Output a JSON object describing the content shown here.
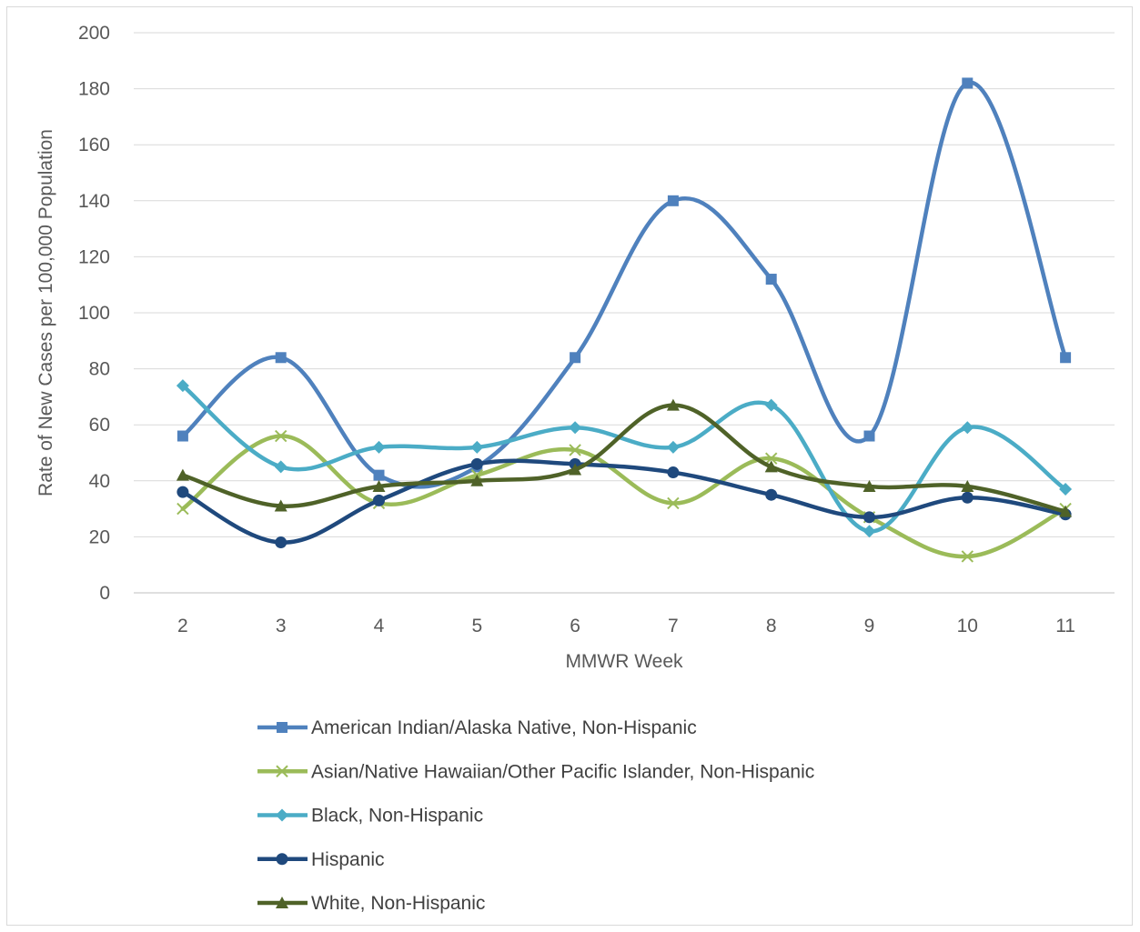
{
  "chart_data": {
    "type": "line",
    "title": "",
    "xlabel": "MMWR Week",
    "ylabel": "Rate of New Cases per 100,000 Population",
    "ylim": [
      0,
      200
    ],
    "yticks": [
      "0",
      "20",
      "40",
      "60",
      "80",
      "100",
      "120",
      "140",
      "160",
      "180",
      "200"
    ],
    "categories": [
      "2",
      "3",
      "4",
      "5",
      "6",
      "7",
      "8",
      "9",
      "10",
      "11"
    ],
    "grid": true,
    "legend_position": "bottom",
    "series": [
      {
        "name": "American Indian/Alaska Native, Non-Hispanic",
        "color": "#4F81BD",
        "marker": "square",
        "values": [
          56,
          84,
          42,
          45,
          84,
          140,
          112,
          56,
          182,
          84
        ]
      },
      {
        "name": "Asian/Native Hawaiian/Other Pacific Islander, Non-Hispanic",
        "color": "#9BBB59",
        "marker": "x",
        "values": [
          30,
          56,
          32,
          42,
          51,
          32,
          48,
          27,
          13,
          30
        ]
      },
      {
        "name": "Black, Non-Hispanic",
        "color": "#4BACC6",
        "marker": "diamond",
        "values": [
          74,
          45,
          52,
          52,
          59,
          52,
          67,
          22,
          59,
          37
        ]
      },
      {
        "name": "Hispanic",
        "color": "#1F497D",
        "marker": "circle",
        "values": [
          36,
          18,
          33,
          46,
          46,
          43,
          35,
          27,
          34,
          28
        ]
      },
      {
        "name": "White, Non-Hispanic",
        "color": "#4F6228",
        "marker": "triangle",
        "values": [
          42,
          31,
          38,
          40,
          44,
          67,
          45,
          38,
          38,
          29
        ]
      }
    ]
  }
}
